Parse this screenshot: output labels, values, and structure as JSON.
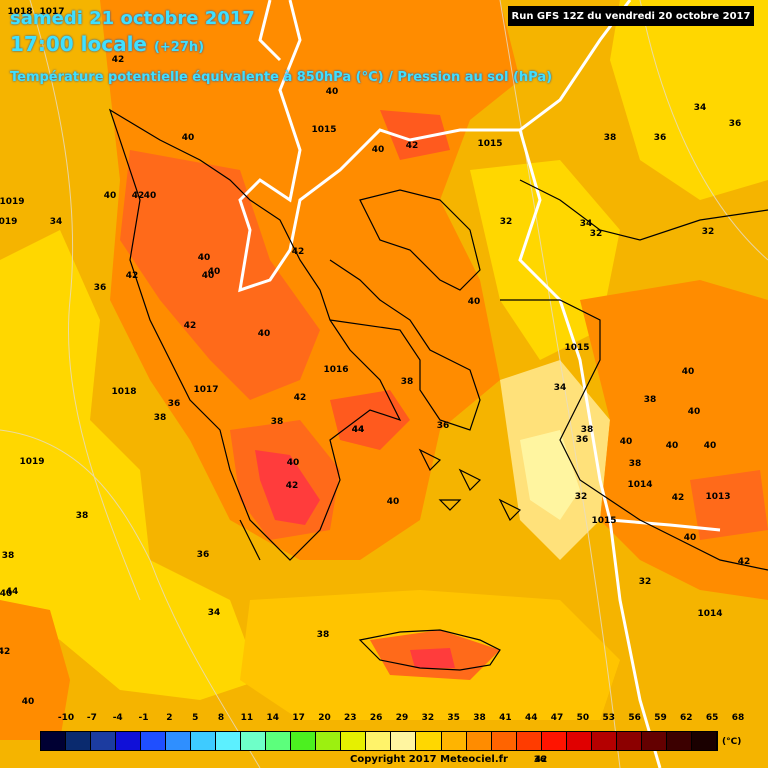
{
  "header": {
    "date": "samedi 21 octobre 2017",
    "time": "17:00 locale",
    "offset": "(+27h)",
    "variable": "Température potentielle équivalente à 850hPa (°C) / Pression au sol (hPa)"
  },
  "run_info": "Run GFS 12Z du vendredi 20 octobre 2017",
  "legend": {
    "unit": "(°C)",
    "ticks": [
      "-10",
      "-7",
      "-4",
      "-1",
      "2",
      "5",
      "8",
      "11",
      "14",
      "17",
      "20",
      "23",
      "26",
      "29",
      "32",
      "35",
      "38",
      "41",
      "44",
      "47",
      "50",
      "53",
      "56",
      "59",
      "62",
      "65",
      "68"
    ],
    "colors": [
      "#000033",
      "#0a2a6e",
      "#1c3ca0",
      "#1010d8",
      "#1f4fff",
      "#2f8fff",
      "#3ecbff",
      "#5cf0ff",
      "#6effc8",
      "#5cff7c",
      "#4cf020",
      "#9cf010",
      "#e6f000",
      "#fff36a",
      "#fff5a0",
      "#ffd700",
      "#ffb400",
      "#ff8c00",
      "#ff6400",
      "#ff3c00",
      "#ff1400",
      "#e00000",
      "#b40000",
      "#8c0000",
      "#640000",
      "#3c0000",
      "#1a0000"
    ]
  },
  "copyright": "Copyright 2017 Meteociel.fr",
  "colors": {
    "background": "#f5b400",
    "warm": "#ff8c00",
    "hot": "#ff5a1e",
    "hottest": "#ff3c3c",
    "cool": "#ffd700",
    "coolest": "#fff5a0",
    "coast": "#000000",
    "isobar": "#ffffff"
  },
  "map_labels": [
    {
      "text": "1018"
    },
    {
      "text": "1017"
    },
    {
      "text": "1019"
    },
    {
      "text": "019"
    },
    {
      "text": "34"
    },
    {
      "text": "42"
    },
    {
      "text": "40"
    },
    {
      "text": "40"
    },
    {
      "text": "40"
    },
    {
      "text": "42"
    },
    {
      "text": "42"
    },
    {
      "text": "36"
    },
    {
      "text": "42"
    },
    {
      "text": "40"
    },
    {
      "text": "40"
    },
    {
      "text": "42"
    },
    {
      "text": "40"
    },
    {
      "text": "40"
    },
    {
      "text": "1015"
    },
    {
      "text": "40"
    },
    {
      "text": "42"
    },
    {
      "text": "1015"
    },
    {
      "text": "40"
    },
    {
      "text": "32"
    },
    {
      "text": "34"
    },
    {
      "text": "32"
    },
    {
      "text": "32"
    },
    {
      "text": "38"
    },
    {
      "text": "36"
    },
    {
      "text": "34"
    },
    {
      "text": "36"
    },
    {
      "text": "1018"
    },
    {
      "text": "1017"
    },
    {
      "text": "36"
    },
    {
      "text": "38"
    },
    {
      "text": "40"
    },
    {
      "text": "1016"
    },
    {
      "text": "38"
    },
    {
      "text": "42"
    },
    {
      "text": "38"
    },
    {
      "text": "44"
    },
    {
      "text": "36"
    },
    {
      "text": "1015"
    },
    {
      "text": "34"
    },
    {
      "text": "38"
    },
    {
      "text": "36"
    },
    {
      "text": "40"
    },
    {
      "text": "44"
    },
    {
      "text": "42"
    },
    {
      "text": "40"
    },
    {
      "text": "1019"
    },
    {
      "text": "38"
    },
    {
      "text": "36"
    },
    {
      "text": "34"
    },
    {
      "text": "40"
    },
    {
      "text": "38"
    },
    {
      "text": "32"
    },
    {
      "text": "1015"
    },
    {
      "text": "40"
    },
    {
      "text": "38"
    },
    {
      "text": "40"
    },
    {
      "text": "38"
    },
    {
      "text": "40"
    },
    {
      "text": "40"
    },
    {
      "text": "1014"
    },
    {
      "text": "42"
    },
    {
      "text": "1013"
    },
    {
      "text": "40"
    },
    {
      "text": "42"
    },
    {
      "text": "32"
    },
    {
      "text": "1014"
    },
    {
      "text": "38"
    },
    {
      "text": "44"
    },
    {
      "text": "40"
    },
    {
      "text": "42"
    },
    {
      "text": "40"
    },
    {
      "text": "42"
    },
    {
      "text": "36"
    }
  ]
}
